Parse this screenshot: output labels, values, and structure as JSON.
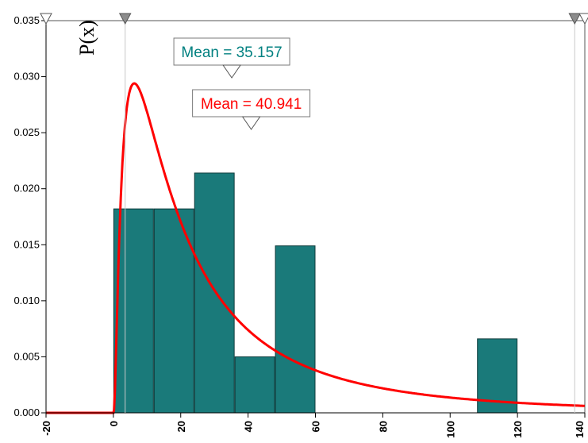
{
  "chart_data": {
    "type": "bar",
    "ylabel": "P(x)",
    "xlabel": "",
    "xlim": [
      -20,
      140
    ],
    "ylim": [
      0,
      0.035
    ],
    "x_ticks": [
      "-20",
      "0",
      "20",
      "40",
      "60",
      "80",
      "100",
      "120",
      "140"
    ],
    "y_ticks": [
      "0.000",
      "0.005",
      "0.010",
      "0.015",
      "0.020",
      "0.025",
      "0.030",
      "0.035"
    ],
    "grid": false,
    "bar_color": "#1a7a7a",
    "curve_color": "#ff0000",
    "histogram": [
      {
        "x0": 0,
        "x1": 12,
        "value": 0.0182
      },
      {
        "x0": 12,
        "x1": 24,
        "value": 0.0182
      },
      {
        "x0": 24,
        "x1": 36,
        "value": 0.0214
      },
      {
        "x0": 36,
        "x1": 48,
        "value": 0.005
      },
      {
        "x0": 48,
        "x1": 60,
        "value": 0.0149
      },
      {
        "x0": 108,
        "x1": 120,
        "value": 0.0066
      }
    ],
    "curve": {
      "type": "lognormal",
      "mean": 40.941,
      "shift": 0,
      "mode": 6.2,
      "peak": 0.0294
    },
    "annotations": [
      {
        "label": "Mean = 35.157",
        "x": 35.157,
        "color": "#008080"
      },
      {
        "label": "Mean = 40.941",
        "x": 40.941,
        "color": "#ff0000"
      }
    ],
    "markers": {
      "left": 3.5,
      "right": 137
    }
  }
}
